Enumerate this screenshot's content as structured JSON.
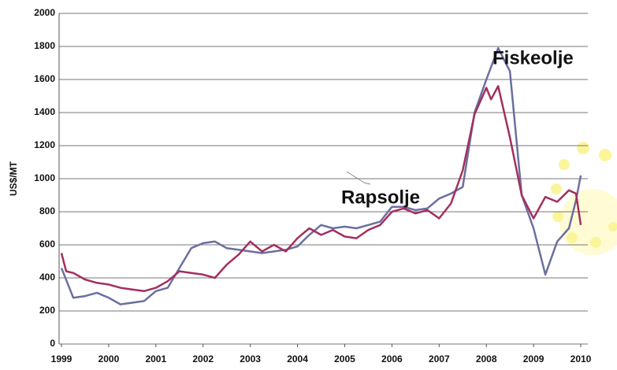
{
  "chart_data": {
    "type": "line",
    "y_label": "US$/MT",
    "xlim": [
      1998.95,
      2010.15
    ],
    "xticks": [
      1999,
      2000,
      2001,
      2002,
      2003,
      2004,
      2005,
      2006,
      2007,
      2008,
      2009,
      2010
    ],
    "ylim": [
      0,
      2000
    ],
    "yticks": [
      0,
      200,
      400,
      600,
      800,
      1000,
      1200,
      1400,
      1600,
      1800,
      2000
    ],
    "grid": true,
    "series": [
      {
        "name": "Fiskeolje",
        "color": "#6b6f9f",
        "x": [
          1999.0,
          1999.25,
          1999.5,
          1999.75,
          2000.0,
          2000.25,
          2000.5,
          2000.75,
          2001.0,
          2001.25,
          2001.5,
          2001.75,
          2002.0,
          2002.25,
          2002.5,
          2002.75,
          2003.0,
          2003.25,
          2003.5,
          2003.75,
          2004.0,
          2004.25,
          2004.5,
          2004.75,
          2005.0,
          2005.25,
          2005.5,
          2005.75,
          2006.0,
          2006.25,
          2006.5,
          2006.75,
          2007.0,
          2007.25,
          2007.5,
          2007.75,
          2008.0,
          2008.25,
          2008.5,
          2008.75,
          2009.0,
          2009.25,
          2009.5,
          2009.75,
          2009.9,
          2010.0
        ],
        "values": [
          460,
          280,
          290,
          310,
          280,
          240,
          250,
          260,
          320,
          340,
          460,
          580,
          610,
          620,
          580,
          570,
          560,
          550,
          560,
          570,
          590,
          660,
          720,
          700,
          710,
          700,
          720,
          740,
          830,
          830,
          810,
          820,
          880,
          910,
          950,
          1400,
          1600,
          1790,
          1650,
          900,
          700,
          420,
          620,
          700,
          870,
          1020
        ]
      },
      {
        "name": "Rapsolje",
        "color": "#a32f5f",
        "x": [
          1999.0,
          1999.1,
          1999.25,
          1999.5,
          1999.75,
          2000.0,
          2000.25,
          2000.5,
          2000.75,
          2001.0,
          2001.25,
          2001.5,
          2001.75,
          2002.0,
          2002.25,
          2002.5,
          2002.75,
          2003.0,
          2003.25,
          2003.5,
          2003.75,
          2004.0,
          2004.25,
          2004.5,
          2004.75,
          2005.0,
          2005.25,
          2005.5,
          2005.75,
          2006.0,
          2006.25,
          2006.5,
          2006.75,
          2007.0,
          2007.25,
          2007.5,
          2007.75,
          2008.0,
          2008.1,
          2008.25,
          2008.5,
          2008.75,
          2009.0,
          2009.25,
          2009.5,
          2009.75,
          2009.9,
          2010.0
        ],
        "values": [
          550,
          440,
          430,
          390,
          370,
          360,
          340,
          330,
          320,
          340,
          380,
          440,
          430,
          420,
          400,
          480,
          540,
          620,
          560,
          600,
          560,
          640,
          700,
          660,
          690,
          650,
          640,
          690,
          720,
          800,
          820,
          790,
          810,
          760,
          850,
          1050,
          1390,
          1550,
          1480,
          1560,
          1250,
          900,
          760,
          890,
          860,
          930,
          910,
          720
        ]
      }
    ]
  }
}
